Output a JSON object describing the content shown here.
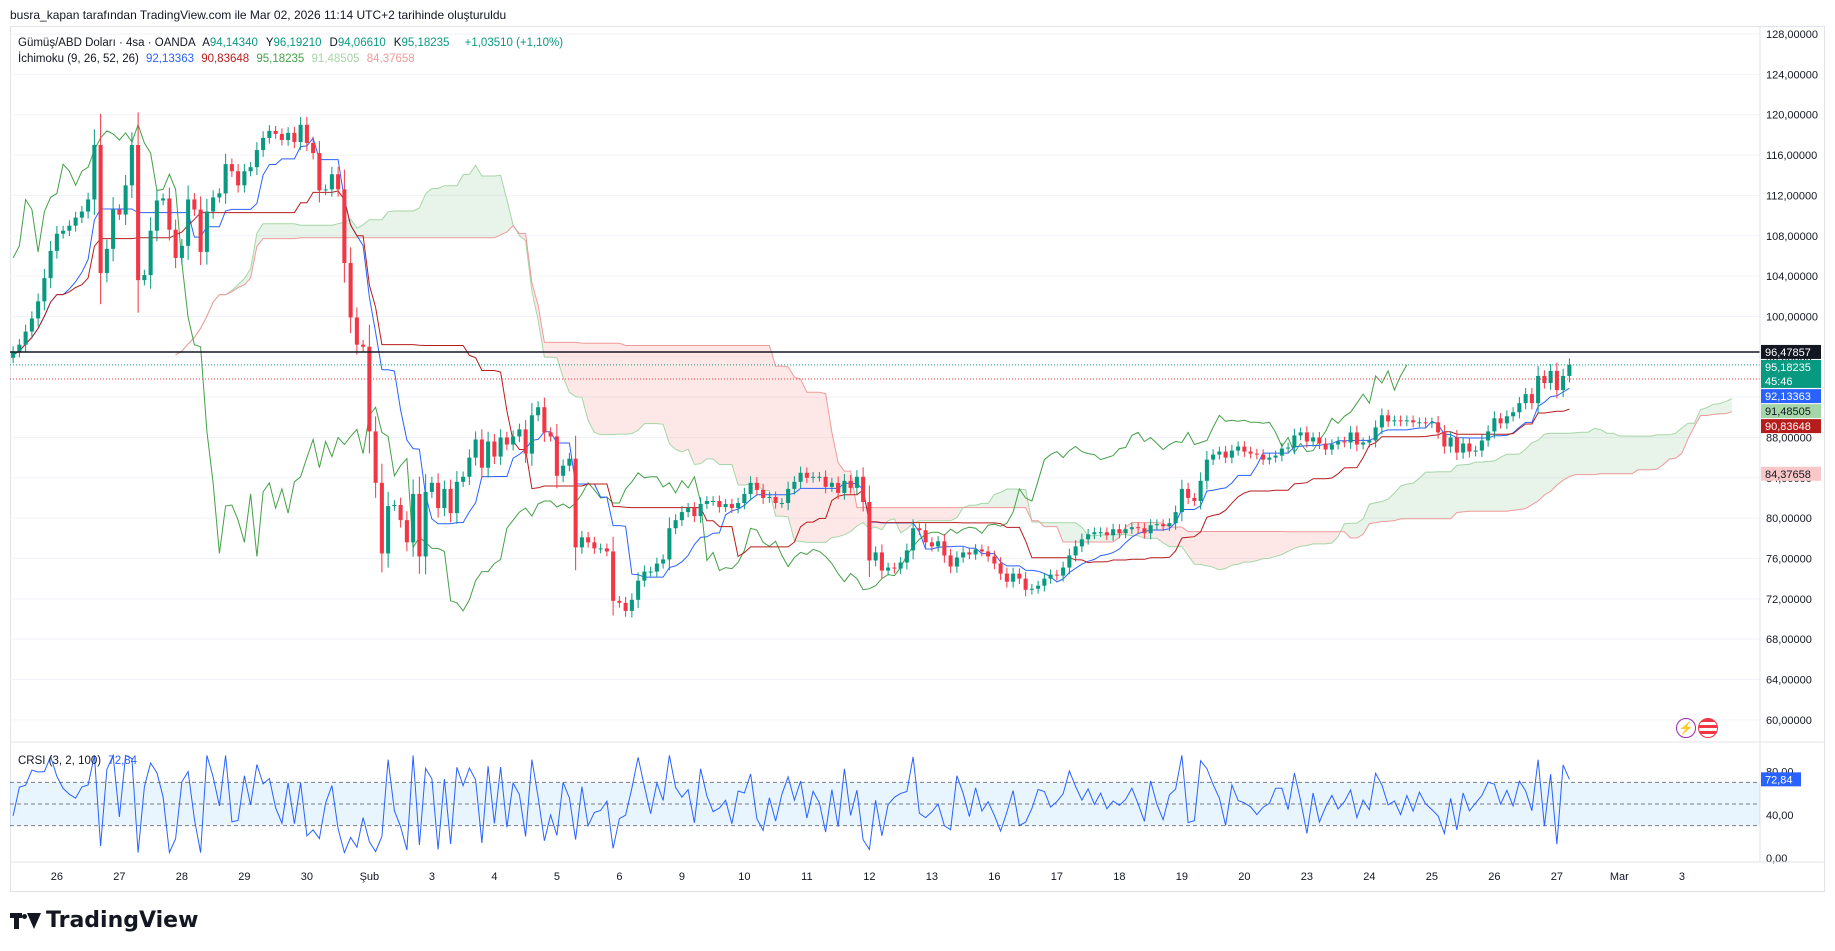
{
  "header": {
    "text": "busra_kapan tarafından TradingView.com ile Mar 02, 2026 11:14 UTC+2 tarihinde oluşturuldu"
  },
  "legend": {
    "symbol": "Gümüş/ABD Doları · 4sa · OANDA",
    "ohlc": [
      {
        "label": "A",
        "value": "94,14340"
      },
      {
        "label": "Y",
        "value": "96,19210"
      },
      {
        "label": "D",
        "value": "94,06610"
      },
      {
        "label": "K",
        "value": "95,18235"
      }
    ],
    "change": "+1,03510 (+1,10%)",
    "ichimoku_name": "İchimoku (9, 26, 52, 26)",
    "ichimoku_values": [
      "92,13363",
      "90,83648",
      "95,18235",
      "91,48505",
      "84,37658"
    ],
    "crsi_name": "CRSI (3, 2, 100)",
    "crsi_value": "72,84"
  },
  "colors": {
    "up": "#089981",
    "down": "#f23645",
    "tenkan": "#2962ff",
    "kijun": "#b71c1c",
    "lagging": "#43a047",
    "span_a": "#a5d6a7",
    "span_b": "#ef9a9a",
    "cloud_up": "rgba(67,160,71,0.12)",
    "cloud_down": "rgba(244,67,54,0.12)",
    "crsi_line": "#2962ff",
    "crsi_band": "rgba(33,150,243,0.10)"
  },
  "logo": {
    "text": "TradingView",
    "icon": "tradingview-logo-icon"
  },
  "icons": [
    "lightning-icon",
    "us-flag-icon"
  ],
  "chart_data": {
    "type": "candlestick",
    "symbol": "XAG/USD",
    "timeframe": "4sa",
    "ylim": [
      58,
      128.8
    ],
    "y_ticks": [
      "128,00000",
      "124,00000",
      "120,00000",
      "116,00000",
      "112,00000",
      "108,00000",
      "104,00000",
      "100,00000",
      "96,00000",
      "92,00000",
      "88,00000",
      "84,00000",
      "80,00000",
      "76,00000",
      "72,00000",
      "68,00000",
      "64,00000",
      "60,00000"
    ],
    "x_ticks": [
      {
        "label": "26",
        "i": 7
      },
      {
        "label": "27",
        "i": 17
      },
      {
        "label": "28",
        "i": 27
      },
      {
        "label": "29",
        "i": 37
      },
      {
        "label": "30",
        "i": 47
      },
      {
        "label": "Şub",
        "i": 57
      },
      {
        "label": "3",
        "i": 67
      },
      {
        "label": "4",
        "i": 77
      },
      {
        "label": "5",
        "i": 87
      },
      {
        "label": "6",
        "i": 97
      },
      {
        "label": "9",
        "i": 107
      },
      {
        "label": "10",
        "i": 117
      },
      {
        "label": "11",
        "i": 127
      },
      {
        "label": "12",
        "i": 137
      },
      {
        "label": "13",
        "i": 147
      },
      {
        "label": "16",
        "i": 157
      },
      {
        "label": "17",
        "i": 167
      },
      {
        "label": "18",
        "i": 177
      },
      {
        "label": "19",
        "i": 187
      },
      {
        "label": "20",
        "i": 197
      },
      {
        "label": "23",
        "i": 207
      },
      {
        "label": "24",
        "i": 217
      },
      {
        "label": "25",
        "i": 227
      },
      {
        "label": "26",
        "i": 237
      },
      {
        "label": "27",
        "i": 247
      },
      {
        "label": "Mar",
        "i": 257
      },
      {
        "label": "3",
        "i": 267
      }
    ],
    "x_count": 280,
    "closes": [
      96.5,
      97.2,
      98.5,
      99.8,
      101.5,
      103.8,
      106.5,
      108.2,
      108.5,
      109.0,
      109.8,
      110.4,
      111.6,
      117.0,
      104.3,
      106.7,
      110.6,
      110.1,
      113.0,
      117.0,
      103.6,
      104.1,
      108.5,
      111.5,
      111.7,
      108.6,
      105.8,
      107.0,
      111.6,
      110.6,
      106.4,
      110.4,
      111.8,
      112.2,
      115.1,
      114.4,
      113.0,
      114.4,
      114.8,
      116.5,
      117.7,
      118.4,
      118.1,
      117.5,
      118.2,
      117.3,
      119.0,
      117.2,
      116.2,
      112.5,
      112.6,
      114.1,
      112.6,
      105.3,
      99.9,
      97.2,
      97.0,
      88.6,
      83.5,
      76.5,
      81.2,
      81.3,
      79.8,
      77.6,
      82.4,
      76.2,
      82.6,
      83.5,
      81.0,
      82.9,
      80.5,
      83.6,
      84.1,
      86.0,
      87.8,
      85.0,
      87.6,
      86.1,
      88.0,
      87.3,
      88.1,
      88.8,
      86.4,
      90.2,
      91.0,
      88.5,
      88.1,
      84.2,
      85.2,
      85.9,
      77.1,
      78.1,
      77.6,
      77.0,
      77.0,
      76.7,
      71.8,
      71.6,
      70.8,
      71.9,
      73.8,
      74.7,
      74.7,
      75.5,
      75.9,
      79.0,
      79.8,
      80.6,
      81.0,
      80.2,
      81.4,
      81.7,
      81.7,
      81.1,
      81.4,
      81.0,
      81.5,
      82.4,
      83.5,
      82.8,
      82.0,
      82.1,
      81.5,
      81.5,
      82.9,
      83.6,
      84.5,
      84.0,
      84.1,
      84.1,
      83.1,
      83.5,
      82.5,
      83.7,
      83.0,
      84.1,
      81.6,
      75.8,
      76.6,
      74.8,
      75.1,
      75.0,
      75.6,
      76.8,
      79.0,
      78.8,
      77.6,
      77.2,
      77.7,
      76.3,
      75.2,
      76.1,
      76.6,
      76.4,
      76.9,
      76.7,
      76.2,
      75.5,
      74.5,
      73.7,
      74.5,
      74.0,
      72.9,
      73.0,
      73.3,
      74.0,
      74.4,
      74.3,
      75.1,
      76.3,
      77.2,
      77.9,
      78.4,
      78.6,
      78.6,
      78.3,
      78.9,
      78.5,
      78.9,
      79.1,
      79.0,
      78.5,
      79.3,
      79.4,
      79.2,
      79.5,
      80.6,
      82.9,
      82.0,
      81.7,
      83.7,
      85.8,
      86.3,
      86.6,
      86.0,
      86.7,
      87.1,
      86.6,
      86.4,
      86.3,
      85.8,
      86.0,
      86.2,
      86.9,
      87.0,
      88.2,
      88.5,
      87.6,
      88.0,
      87.4,
      86.8,
      87.3,
      87.6,
      87.5,
      88.5,
      87.3,
      87.5,
      87.7,
      89.0,
      90.2,
      89.6,
      89.7,
      89.6,
      89.7,
      89.5,
      89.5,
      89.4,
      89.5,
      88.5,
      87.1,
      88.0,
      86.5,
      87.4,
      86.6,
      86.7,
      87.7,
      88.6,
      89.9,
      89.4,
      90.1,
      90.5,
      91.4,
      92.3,
      91.4,
      94.1,
      93.4,
      94.6,
      92.7,
      94.1,
      95.2
    ]
  }
}
